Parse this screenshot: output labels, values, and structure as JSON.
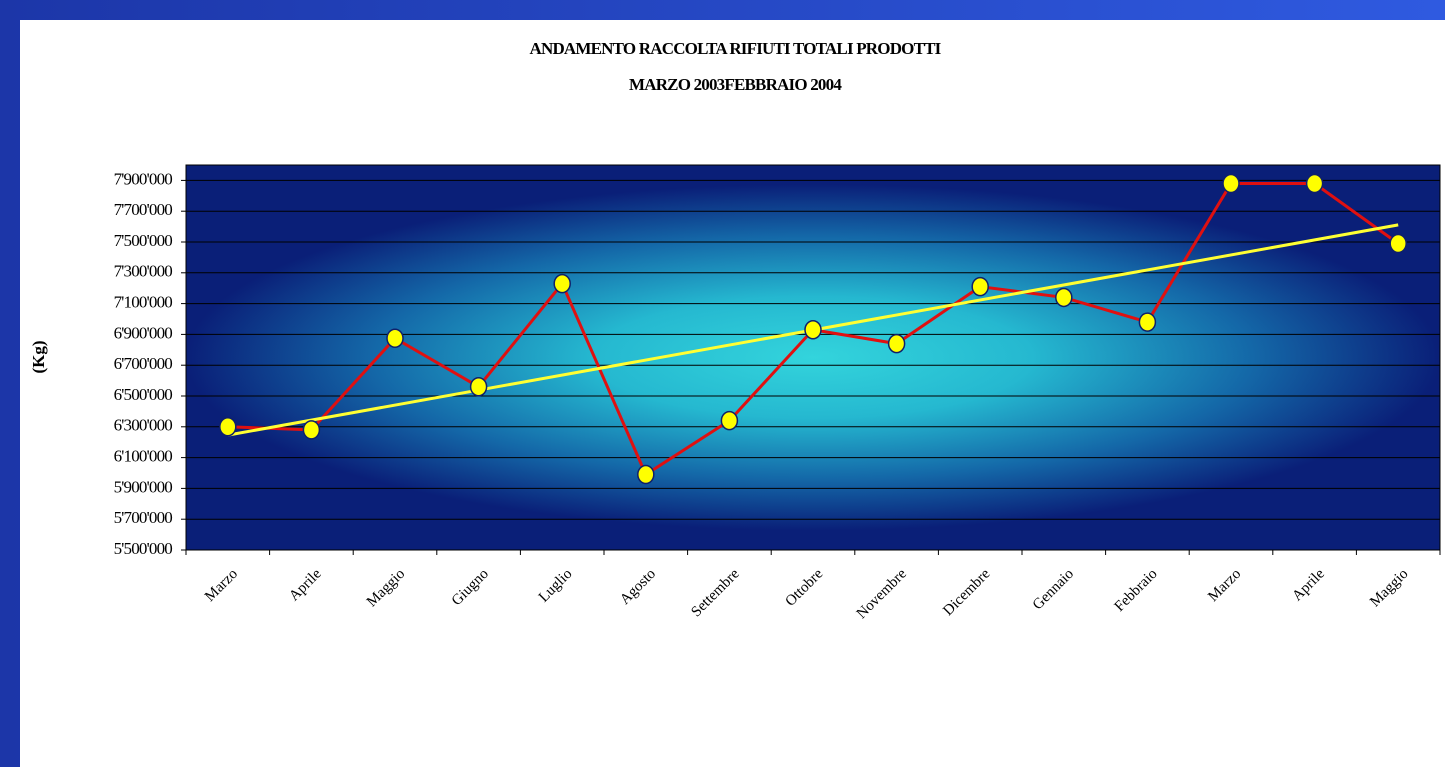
{
  "chart_data": {
    "type": "line",
    "title": "ANDAMENTO RACCOLTA RIFIUTI TOTALI PRODOTTI",
    "subtitle": "MARZO 2003FEBBRAIO 2004",
    "y_label": "(Kg)",
    "categories": [
      "Marzo",
      "Aprile",
      "Maggio",
      "Giugno",
      "Luglio",
      "Agosto",
      "Settembre",
      "Ottobre",
      "Novembre",
      "Dicembre",
      "Gennaio",
      "Febbraio",
      "Marzo",
      "Aprile",
      "Maggio"
    ],
    "values": [
      6300000,
      6280000,
      6875000,
      6560000,
      7230000,
      5990000,
      6340000,
      6930000,
      6840000,
      7210000,
      7140000,
      6980000,
      7880000,
      7880000,
      7490000
    ],
    "color": "#e01010",
    "marker_color": "#ffff00",
    "trendline": "linear",
    "trendline_color": "#ffff33",
    "ylim": [
      5500000,
      8000000
    ],
    "yticks": [
      {
        "value": 5500000,
        "label": "5'500'000"
      },
      {
        "value": 5700000,
        "label": "5'700'000"
      },
      {
        "value": 5900000,
        "label": "5'900'000"
      },
      {
        "value": 6100000,
        "label": "6'100'000"
      },
      {
        "value": 6300000,
        "label": "6'300'000"
      },
      {
        "value": 6500000,
        "label": "6'500'000"
      },
      {
        "value": 6700000,
        "label": "6'700'000"
      },
      {
        "value": 6900000,
        "label": "6'900'000"
      },
      {
        "value": 7100000,
        "label": "7'100'000"
      },
      {
        "value": 7300000,
        "label": "7'300'000"
      },
      {
        "value": 7500000,
        "label": "7'500'000"
      },
      {
        "value": 7700000,
        "label": "7'700'000"
      },
      {
        "value": 7900000,
        "label": "7'900'000"
      }
    ],
    "grid": true
  }
}
